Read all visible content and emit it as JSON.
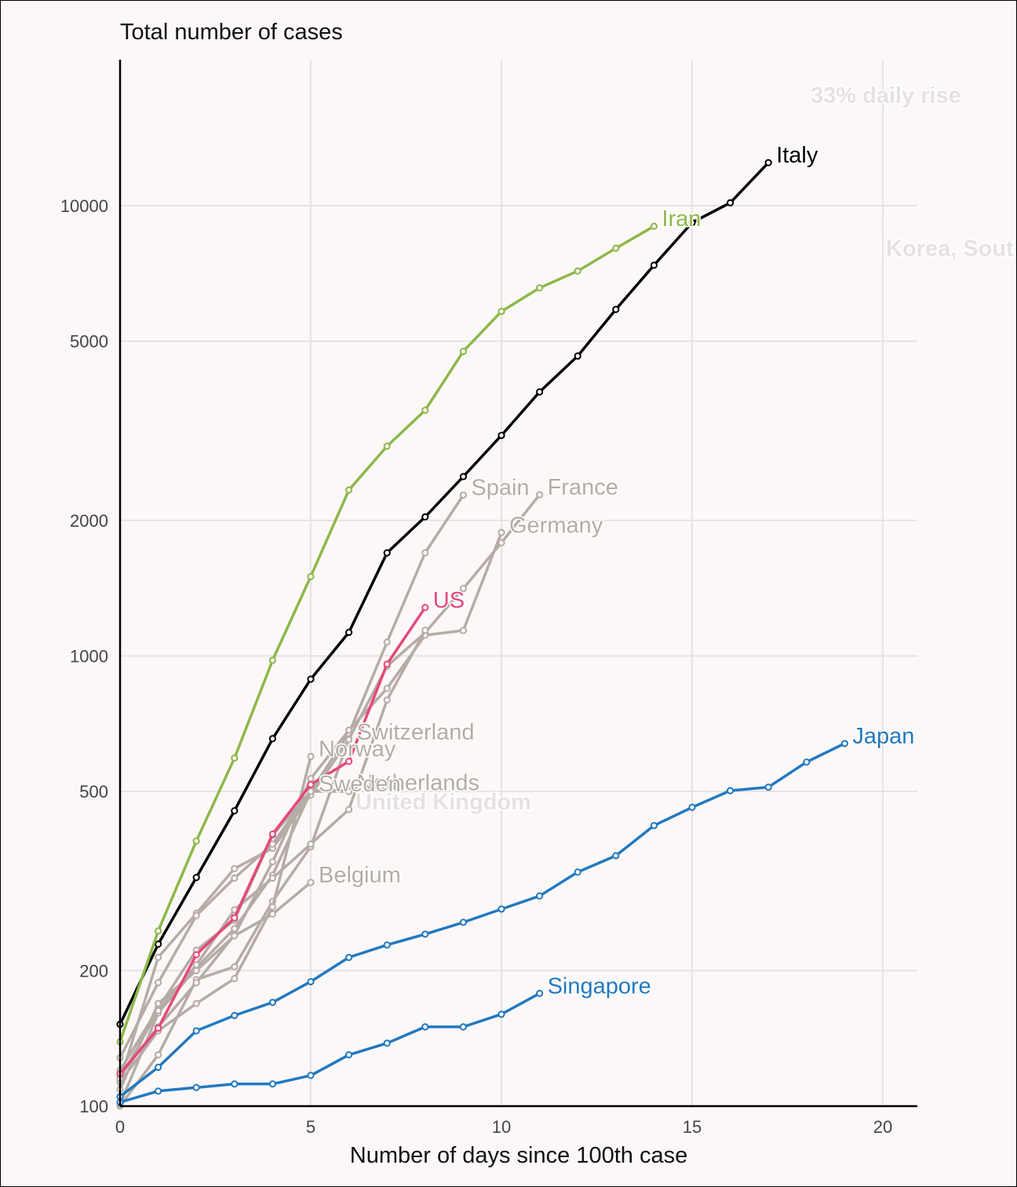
{
  "chart_data": {
    "type": "line",
    "title": "Total number of cases",
    "xlabel": "Number of days since 100th case",
    "ylabel": "",
    "y_scale": "log",
    "xlim": [
      0,
      21
    ],
    "ylim": [
      100,
      18500
    ],
    "x_ticks": [
      0,
      5,
      10,
      15,
      20
    ],
    "y_ticks": [
      100,
      200,
      500,
      1000,
      2000,
      5000,
      10000
    ],
    "grid": true,
    "colors": {
      "background": "#fdf8f8",
      "grid": "#e3e3e3",
      "grey_series": "#b5aca6",
      "italy": "#000000",
      "iran": "#8db84a",
      "us": "#e5487a",
      "asia": "#2179c0",
      "ghost": "#e6e1e1"
    },
    "annotations": [
      "33% daily rise",
      "Korea, South",
      "United Kingdom"
    ],
    "series": [
      {
        "name": "Italy",
        "color": "#000000",
        "x": [
          0,
          1,
          2,
          3,
          4,
          5,
          6,
          7,
          8,
          9,
          10,
          11,
          12,
          13,
          14,
          15,
          16,
          17
        ],
        "values": [
          152,
          229,
          322,
          453,
          655,
          888,
          1128,
          1694,
          2036,
          2502,
          3089,
          3858,
          4636,
          5883,
          7375,
          9172,
          10149,
          12462
        ]
      },
      {
        "name": "Iran",
        "color": "#8db84a",
        "x": [
          0,
          1,
          2,
          3,
          4,
          5,
          6,
          7,
          8,
          9,
          10,
          11,
          12,
          13,
          14
        ],
        "values": [
          139,
          245,
          388,
          593,
          978,
          1501,
          2336,
          2922,
          3513,
          4747,
          5823,
          6566,
          7161,
          8042,
          9000
        ]
      },
      {
        "name": "US",
        "color": "#e5487a",
        "x": [
          0,
          1,
          2,
          3,
          4,
          5,
          6,
          7,
          8
        ],
        "values": [
          118,
          149,
          217,
          262,
          402,
          518,
          583,
          959,
          1281
        ]
      },
      {
        "name": "Spain",
        "color": "#b5aca6",
        "x": [
          0,
          1,
          2,
          3,
          4,
          5,
          6,
          7,
          8,
          9
        ],
        "values": [
          120,
          165,
          222,
          259,
          400,
          500,
          673,
          1073,
          1695,
          2277
        ]
      },
      {
        "name": "France",
        "color": "#b5aca6",
        "x": [
          0,
          1,
          2,
          3,
          4,
          5,
          6,
          7,
          8,
          9,
          10,
          11
        ],
        "values": [
          100,
          130,
          191,
          204,
          285,
          377,
          653,
          949,
          1126,
          1412,
          1784,
          2281
        ]
      },
      {
        "name": "Germany",
        "color": "#b5aca6",
        "x": [
          0,
          1,
          2,
          3,
          4,
          5,
          6,
          7,
          8,
          9,
          10
        ],
        "values": [
          117,
          150,
          188,
          240,
          349,
          534,
          684,
          847,
          1112,
          1139,
          1880
        ]
      },
      {
        "name": "Switzerland",
        "color": "#b5aca6",
        "x": [
          0,
          1,
          2,
          3,
          4,
          5,
          6
        ],
        "values": [
          114,
          214,
          268,
          337,
          374,
          491,
          652
        ]
      },
      {
        "name": "Norway",
        "color": "#b5aca6",
        "x": [
          0,
          1,
          2,
          3,
          4,
          5
        ],
        "values": [
          113,
          147,
          169,
          192,
          277,
          598
        ]
      },
      {
        "name": "Netherlands",
        "color": "#b5aca6",
        "x": [
          0,
          1,
          2,
          3,
          4,
          5,
          6
        ],
        "values": [
          128,
          188,
          265,
          321,
          382,
          503,
          503
        ]
      },
      {
        "name": "Sweden",
        "color": "#b5aca6",
        "x": [
          0,
          1,
          2,
          3,
          4,
          5,
          6
        ],
        "values": [
          101,
          161,
          203,
          248,
          326,
          500,
          500
        ]
      },
      {
        "name": "United Kingdom",
        "color": "#b5aca6",
        "x": [
          0,
          1,
          2,
          3,
          4,
          5,
          6,
          7,
          8
        ],
        "values": [
          115,
          163,
          206,
          273,
          321,
          382,
          456,
          798,
          1140
        ]
      },
      {
        "name": "Belgium",
        "color": "#b5aca6",
        "x": [
          0,
          1,
          2,
          3,
          4,
          5
        ],
        "values": [
          109,
          169,
          200,
          239,
          267,
          314
        ]
      },
      {
        "name": "Japan",
        "color": "#2179c0",
        "x": [
          0,
          1,
          2,
          3,
          4,
          5,
          6,
          7,
          8,
          9,
          10,
          11,
          12,
          13,
          14,
          15,
          16,
          17,
          18,
          19
        ],
        "values": [
          105,
          122,
          147,
          159,
          170,
          189,
          214,
          228,
          241,
          256,
          274,
          293,
          331,
          360,
          420,
          461,
          502,
          511,
          581,
          639
        ]
      },
      {
        "name": "Singapore",
        "color": "#2179c0",
        "x": [
          0,
          1,
          2,
          3,
          4,
          5,
          6,
          7,
          8,
          9,
          10,
          11
        ],
        "values": [
          102,
          108,
          110,
          112,
          112,
          117,
          130,
          138,
          150,
          150,
          160,
          178
        ]
      }
    ],
    "labels": [
      {
        "text": "Italy",
        "color": "#000000",
        "x": 17,
        "y": 12462
      },
      {
        "text": "Iran",
        "color": "#8db84a",
        "x": 14,
        "y": 9000
      },
      {
        "text": "US",
        "color": "#e5487a",
        "x": 8,
        "y": 1281
      },
      {
        "text": "Spain",
        "color": "#b5aca6",
        "x": 9,
        "y": 2277
      },
      {
        "text": "France",
        "color": "#b5aca6",
        "x": 11,
        "y": 2281
      },
      {
        "text": "Germany",
        "color": "#b5aca6",
        "x": 10,
        "y": 1880
      },
      {
        "text": "Switzerland",
        "color": "#b5aca6",
        "x": 6,
        "y": 652
      },
      {
        "text": "Norway",
        "color": "#b5aca6",
        "x": 5,
        "y": 598
      },
      {
        "text": "Netherlands",
        "color": "#b5aca6",
        "x": 6,
        "y": 503
      },
      {
        "text": "Sweden",
        "color": "#b5aca6",
        "x": 5,
        "y": 500
      },
      {
        "text": "Belgium",
        "color": "#b5aca6",
        "x": 5,
        "y": 314
      },
      {
        "text": "Japan",
        "color": "#2179c0",
        "x": 19,
        "y": 639
      },
      {
        "text": "Singapore",
        "color": "#2179c0",
        "x": 11,
        "y": 178
      }
    ]
  }
}
